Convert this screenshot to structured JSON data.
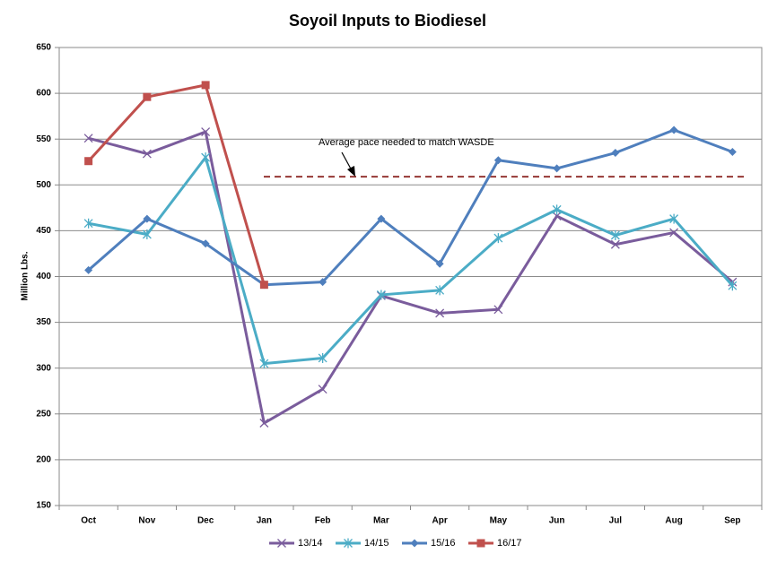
{
  "chart_data": {
    "type": "line",
    "title": "Soyoil Inputs to Biodiesel",
    "y_label": "Million Lbs.",
    "categories": [
      "Oct",
      "Nov",
      "Dec",
      "Jan",
      "Feb",
      "Mar",
      "Apr",
      "May",
      "Jun",
      "Jul",
      "Aug",
      "Sep"
    ],
    "series": [
      {
        "name": "13/14",
        "color": "#7a5c9c",
        "marker": "x",
        "values": [
          551,
          534,
          558,
          240,
          277,
          379,
          360,
          364,
          466,
          435,
          448,
          394
        ]
      },
      {
        "name": "14/15",
        "color": "#4bacc6",
        "marker": "asterisk",
        "values": [
          458,
          446,
          530,
          305,
          311,
          380,
          385,
          442,
          473,
          445,
          463,
          390
        ]
      },
      {
        "name": "15/16",
        "color": "#4f7fbd",
        "marker": "diamond",
        "values": [
          407,
          463,
          436,
          391,
          394,
          463,
          414,
          527,
          518,
          535,
          560,
          536
        ]
      },
      {
        "name": "16/17",
        "color": "#c0504d",
        "marker": "square",
        "values": [
          526,
          596,
          609,
          391,
          null,
          null,
          null,
          null,
          null,
          null,
          null,
          null
        ]
      }
    ],
    "annotation": {
      "text": "Average pace needed to match WASDE",
      "value": 509,
      "color": "#953734"
    },
    "ylim": [
      150,
      650
    ],
    "yticks": [
      150,
      200,
      250,
      300,
      350,
      400,
      450,
      500,
      550,
      600,
      650
    ],
    "grid": true,
    "legend": "bottom"
  }
}
